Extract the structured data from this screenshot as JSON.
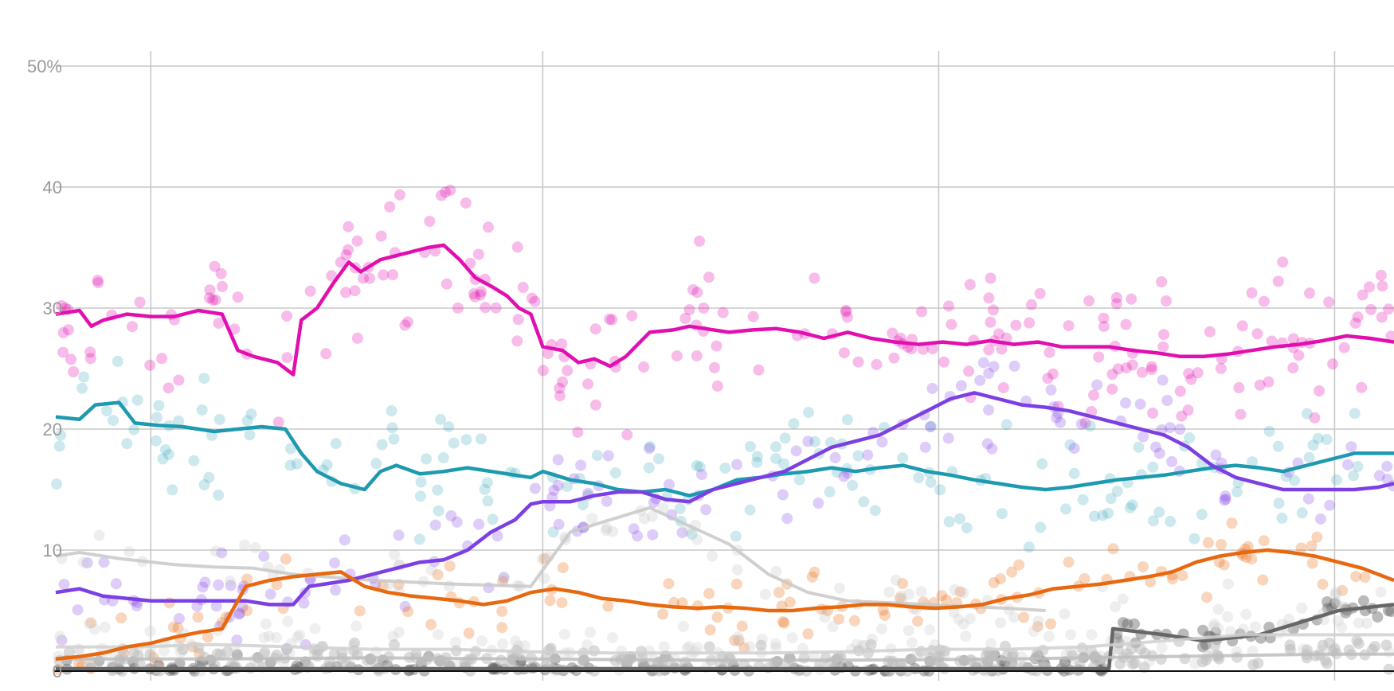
{
  "chart_data": {
    "type": "line",
    "title": "",
    "xlabel": "",
    "ylabel": "",
    "ylim": [
      0,
      50
    ],
    "yticks": [
      {
        "value": 0,
        "label": "0"
      },
      {
        "value": 10,
        "label": "10"
      },
      {
        "value": 20,
        "label": "20"
      },
      {
        "value": 30,
        "label": "30"
      },
      {
        "value": 40,
        "label": "40"
      },
      {
        "value": 50,
        "label": "50%"
      }
    ],
    "x_range": [
      0,
      16.9
    ],
    "x_gridlines": [
      1.2,
      6.15,
      11.15,
      16.15
    ],
    "grid": true,
    "legend": "none",
    "series": [
      {
        "color": "#e20fb0",
        "x": [
          0,
          0.3,
          0.45,
          0.6,
          0.9,
          1.2,
          1.5,
          1.8,
          2.1,
          2.3,
          2.5,
          2.8,
          3.0,
          3.1,
          3.3,
          3.5,
          3.7,
          3.85,
          4.1,
          4.4,
          4.7,
          4.9,
          5.1,
          5.3,
          5.5,
          5.7,
          5.85,
          6.0,
          6.15,
          6.4,
          6.6,
          6.8,
          7.0,
          7.2,
          7.5,
          7.8,
          8.0,
          8.2,
          8.5,
          8.8,
          9.1,
          9.4,
          9.7,
          10.0,
          10.3,
          10.6,
          10.9,
          11.2,
          11.5,
          11.8,
          12.1,
          12.4,
          12.7,
          13.0,
          13.3,
          13.6,
          13.9,
          14.2,
          14.5,
          14.8,
          15.1,
          15.4,
          15.7,
          16.0,
          16.3,
          16.6,
          16.9
        ],
        "values": [
          29.5,
          29.8,
          28.5,
          29.0,
          29.5,
          29.3,
          29.3,
          29.8,
          29.5,
          26.5,
          26.0,
          25.5,
          24.5,
          29.0,
          30.0,
          32.0,
          33.8,
          33.0,
          34.0,
          34.5,
          35.0,
          35.2,
          34.0,
          32.5,
          31.8,
          31.0,
          30.0,
          29.5,
          26.8,
          26.5,
          25.5,
          25.8,
          25.2,
          26.0,
          28.0,
          28.2,
          28.5,
          28.3,
          28.0,
          28.2,
          28.3,
          28.0,
          27.5,
          28.0,
          27.5,
          27.2,
          27.0,
          27.2,
          27.0,
          27.3,
          27.0,
          27.2,
          26.8,
          26.8,
          26.8,
          26.5,
          26.3,
          26.0,
          26.0,
          26.2,
          26.5,
          26.8,
          27.0,
          27.3,
          27.7,
          27.5,
          27.2
        ]
      },
      {
        "color": "#1d9ab0",
        "x": [
          0,
          0.3,
          0.5,
          0.8,
          1.0,
          1.3,
          1.6,
          2.0,
          2.3,
          2.6,
          2.9,
          3.1,
          3.3,
          3.6,
          3.9,
          4.1,
          4.3,
          4.6,
          4.9,
          5.2,
          5.5,
          5.8,
          6.0,
          6.15,
          6.5,
          6.8,
          7.1,
          7.4,
          7.7,
          8.0,
          8.3,
          8.6,
          8.9,
          9.2,
          9.5,
          9.8,
          10.1,
          10.4,
          10.7,
          11.0,
          11.3,
          11.6,
          11.9,
          12.2,
          12.5,
          12.8,
          13.1,
          13.4,
          13.7,
          14.0,
          14.3,
          14.6,
          14.9,
          15.2,
          15.5,
          15.8,
          16.1,
          16.4,
          16.7,
          16.9
        ],
        "values": [
          21.0,
          20.8,
          22.0,
          22.2,
          20.5,
          20.3,
          20.2,
          19.8,
          20.0,
          20.2,
          20.0,
          18.0,
          16.5,
          15.5,
          15.0,
          16.5,
          17.0,
          16.3,
          16.5,
          16.8,
          16.5,
          16.2,
          16.0,
          16.5,
          15.8,
          15.5,
          15.0,
          14.8,
          15.0,
          14.5,
          15.0,
          15.8,
          16.0,
          16.3,
          16.5,
          16.8,
          16.5,
          16.8,
          17.0,
          16.5,
          16.2,
          15.8,
          15.5,
          15.2,
          15.0,
          15.2,
          15.5,
          15.8,
          16.0,
          16.2,
          16.5,
          16.8,
          17.0,
          16.8,
          16.5,
          17.0,
          17.5,
          18.0,
          18.0,
          18.0
        ]
      },
      {
        "color": "#7b3fe4",
        "x": [
          0,
          0.3,
          0.6,
          0.9,
          1.2,
          1.5,
          1.8,
          2.1,
          2.4,
          2.7,
          3.0,
          3.2,
          3.4,
          3.7,
          4.0,
          4.3,
          4.6,
          4.9,
          5.2,
          5.5,
          5.8,
          6.0,
          6.15,
          6.5,
          6.8,
          7.1,
          7.4,
          7.7,
          8.0,
          8.3,
          8.6,
          8.9,
          9.2,
          9.5,
          9.8,
          10.1,
          10.4,
          10.7,
          11.0,
          11.3,
          11.6,
          11.9,
          12.2,
          12.5,
          12.8,
          13.1,
          13.4,
          13.7,
          14.0,
          14.3,
          14.6,
          14.9,
          15.2,
          15.5,
          15.8,
          16.1,
          16.4,
          16.7,
          16.9
        ],
        "values": [
          6.5,
          6.8,
          6.2,
          6.0,
          5.8,
          5.8,
          5.8,
          5.8,
          5.8,
          5.5,
          5.5,
          7.0,
          7.2,
          7.5,
          8.0,
          8.5,
          9.0,
          9.2,
          10.0,
          11.5,
          12.5,
          13.8,
          14.0,
          14.0,
          14.5,
          14.8,
          14.8,
          14.2,
          14.0,
          15.0,
          15.5,
          16.0,
          16.5,
          17.5,
          18.5,
          19.0,
          19.5,
          20.5,
          21.5,
          22.5,
          23.0,
          22.5,
          22.0,
          21.8,
          21.5,
          21.0,
          20.5,
          20.0,
          19.5,
          18.5,
          17.0,
          16.0,
          15.5,
          15.0,
          15.0,
          15.0,
          15.0,
          15.2,
          15.5
        ]
      },
      {
        "color": "#e8680f",
        "x": [
          0,
          0.3,
          0.6,
          0.9,
          1.2,
          1.5,
          1.8,
          2.1,
          2.4,
          2.7,
          3.0,
          3.3,
          3.6,
          3.9,
          4.2,
          4.5,
          4.8,
          5.1,
          5.4,
          5.7,
          6.0,
          6.3,
          6.6,
          6.9,
          7.2,
          7.5,
          7.8,
          8.1,
          8.4,
          8.7,
          9.0,
          9.3,
          9.6,
          9.9,
          10.2,
          10.5,
          10.8,
          11.1,
          11.4,
          11.7,
          12.0,
          12.3,
          12.6,
          12.9,
          13.2,
          13.5,
          13.8,
          14.1,
          14.4,
          14.7,
          15.0,
          15.3,
          15.6,
          15.9,
          16.2,
          16.5,
          16.9
        ],
        "values": [
          1.0,
          1.2,
          1.5,
          2.0,
          2.3,
          2.8,
          3.2,
          3.5,
          7.0,
          7.5,
          7.8,
          8.0,
          8.2,
          7.0,
          6.5,
          6.2,
          6.0,
          5.8,
          5.5,
          5.8,
          6.5,
          6.8,
          6.5,
          6.0,
          5.8,
          5.5,
          5.3,
          5.2,
          5.3,
          5.2,
          5.0,
          5.0,
          5.2,
          5.3,
          5.5,
          5.5,
          5.3,
          5.2,
          5.3,
          5.5,
          6.0,
          6.3,
          6.8,
          7.0,
          7.2,
          7.5,
          7.8,
          8.2,
          9.0,
          9.5,
          9.8,
          10.0,
          9.8,
          9.5,
          9.0,
          8.5,
          7.5
        ]
      },
      {
        "color": "#666666",
        "x": [
          0,
          1,
          2,
          3,
          4,
          5,
          6,
          7,
          8,
          9,
          10,
          11,
          12,
          13.3,
          13.35,
          14,
          14.5,
          15.2,
          15.7,
          16.2,
          16.9
        ],
        "values": [
          0.2,
          0.2,
          0.2,
          0.2,
          0.2,
          0.2,
          0.2,
          0.2,
          0.2,
          0.2,
          0.2,
          0.2,
          0.2,
          0.2,
          3.5,
          3.0,
          2.5,
          3.0,
          4.0,
          5.0,
          5.5
        ]
      },
      {
        "color": "#c8c8c8",
        "x": [
          0,
          0.3,
          0.8,
          1.5,
          2.0,
          2.5,
          3.0,
          4.0,
          5.0,
          6.0,
          6.5,
          7.0,
          7.5,
          8.0,
          8.5,
          9.0,
          9.5,
          10.0,
          11.0,
          12.0,
          12.5
        ],
        "values": [
          9.5,
          9.8,
          9.3,
          8.8,
          8.6,
          8.5,
          8.0,
          7.5,
          7.2,
          7.0,
          11.5,
          12.5,
          13.5,
          12.0,
          10.5,
          8.0,
          6.5,
          5.8,
          5.5,
          5.2,
          5.0
        ]
      },
      {
        "color": "#d0d0d0",
        "x": [
          0,
          1,
          2,
          3,
          4,
          5,
          6,
          7,
          8,
          9,
          10,
          11,
          12,
          13,
          14,
          15,
          16,
          16.9
        ],
        "values": [
          2.0,
          2.0,
          2.2,
          2.0,
          1.8,
          1.8,
          1.6,
          1.5,
          1.5,
          1.5,
          1.6,
          1.8,
          1.8,
          2.0,
          2.5,
          3.0,
          3.0,
          3.0
        ]
      },
      {
        "color": "#bdbdbd",
        "x": [
          0,
          2,
          4,
          6,
          8,
          10,
          12,
          14,
          16,
          16.9
        ],
        "values": [
          1.0,
          1.0,
          1.1,
          1.0,
          0.9,
          0.9,
          1.0,
          1.2,
          1.4,
          1.4
        ]
      }
    ]
  }
}
